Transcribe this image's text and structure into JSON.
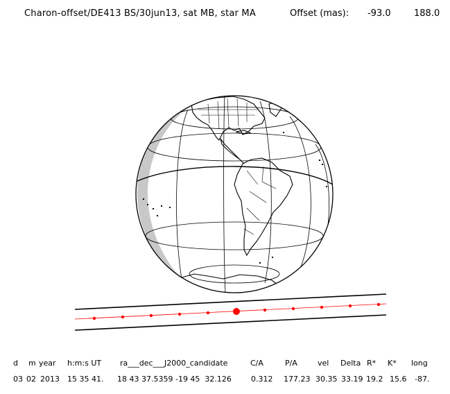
{
  "header": {
    "title": "Charon-offset/DE413 BS/30jun13, sat MB, star MA",
    "offset_label": "Offset (mas):",
    "offset_x": "-93.0",
    "offset_y": "188.0"
  },
  "table": {
    "headers": [
      "d",
      "m",
      "year",
      "h:m:s UT",
      "ra___dec___J2000_candidate",
      "C/A",
      "P/A",
      "vel",
      "Delta",
      "R*",
      "K*",
      "long"
    ],
    "values": [
      "03",
      "02",
      "2013",
      "15 35 41.",
      "18 43 37.5359 -19 45  32.126",
      "0.312",
      "177.23",
      "30.35",
      "33.19",
      "19.2",
      "15.6",
      "-87."
    ]
  },
  "colors": {
    "path_dots": "#ff0000",
    "lines": "#000000",
    "night_shade": "#c8c8c8"
  }
}
